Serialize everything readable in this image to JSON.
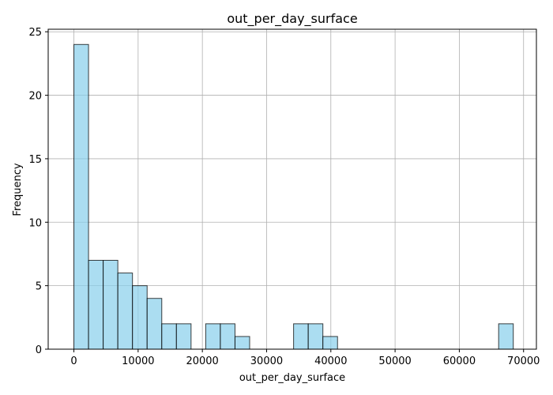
{
  "chart_data": {
    "type": "bar",
    "subtype": "histogram",
    "title": "out_per_day_surface",
    "xlabel": "out_per_day_surface",
    "ylabel": "Frequency",
    "xlim": [
      -4000,
      72000
    ],
    "ylim": [
      0,
      25.2
    ],
    "xticks": [
      0,
      10000,
      20000,
      30000,
      40000,
      50000,
      60000,
      70000
    ],
    "yticks": [
      0,
      5,
      10,
      15,
      20,
      25
    ],
    "grid": true,
    "bar_color": "#87CEEB",
    "bin_start": 0,
    "bin_width": 2280,
    "counts": [
      24,
      7,
      7,
      6,
      5,
      4,
      2,
      2,
      0,
      2,
      2,
      1,
      0,
      0,
      0,
      2,
      2,
      1,
      0,
      0,
      0,
      0,
      0,
      0,
      0,
      0,
      0,
      0,
      0,
      2
    ]
  }
}
